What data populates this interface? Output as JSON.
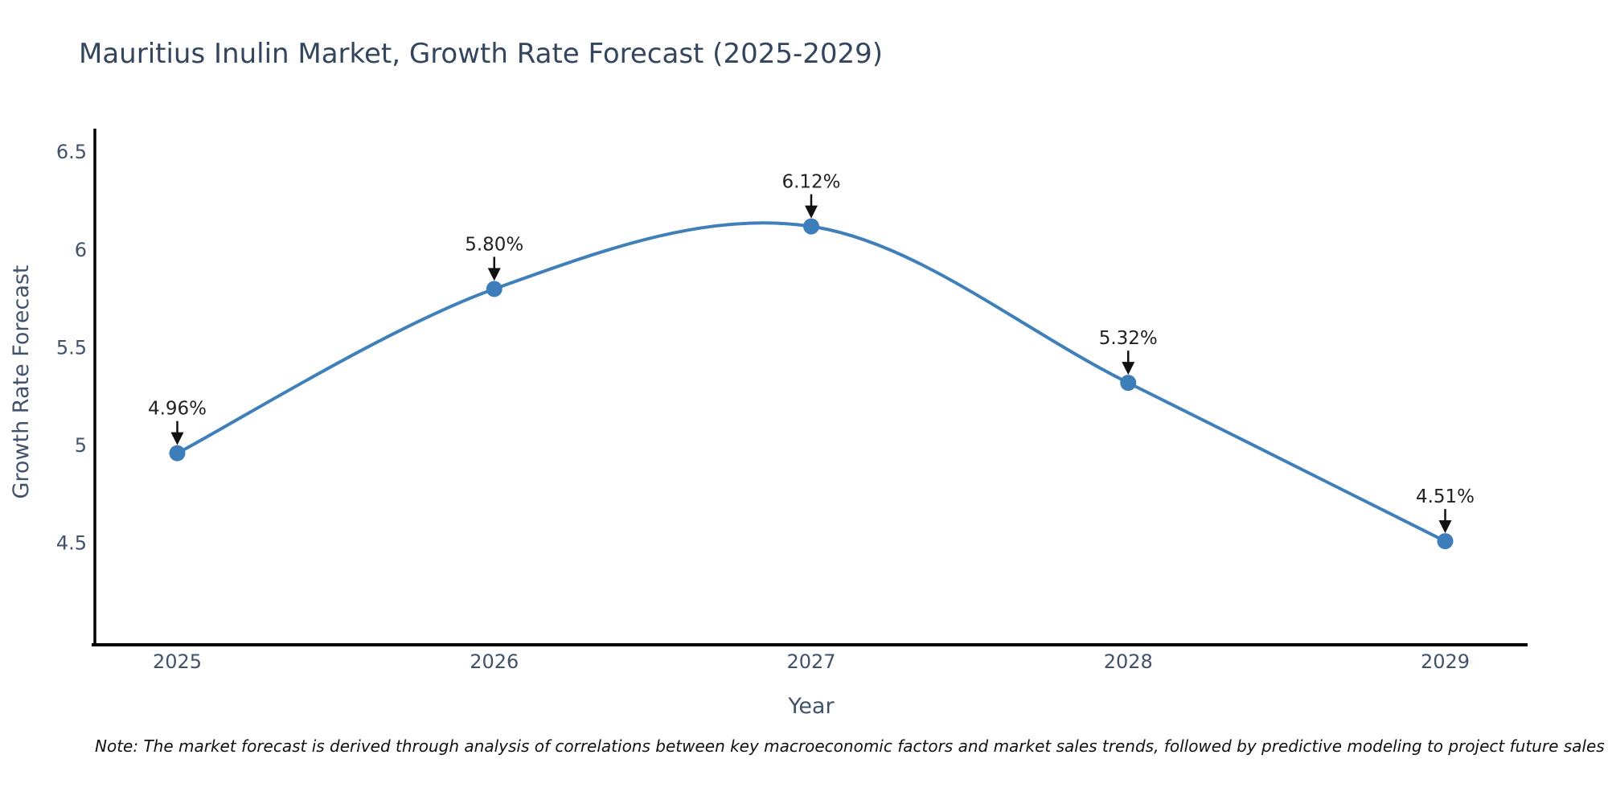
{
  "page": {
    "background": "#ffffff"
  },
  "chart_data": {
    "type": "line",
    "title": "Mauritius Inulin Market, Growth Rate Forecast (2025-2029)",
    "xlabel": "Year",
    "ylabel": "Growth Rate Forecast",
    "x": [
      2025,
      2026,
      2027,
      2028,
      2029
    ],
    "values": [
      4.96,
      5.8,
      6.12,
      5.32,
      4.51
    ],
    "point_labels": [
      "4.96%",
      "5.80%",
      "6.12%",
      "5.32%",
      "4.51%"
    ],
    "xtick_labels": [
      "2025",
      "2026",
      "2027",
      "2028",
      "2029"
    ],
    "yticks": [
      4.5,
      5,
      5.5,
      6,
      6.5
    ],
    "ytick_labels": [
      "4.5",
      "5",
      "5.5",
      "6",
      "6.5"
    ],
    "xlim": [
      2024.74,
      2029.26
    ],
    "ylim": [
      3.98,
      6.62
    ],
    "grid": false,
    "legend": "none",
    "line_shape": "spline",
    "line_color": "#3f80ba",
    "marker_color": "#3d7eba",
    "axis_color": "#000000",
    "title_color": "#33455f",
    "tick_color": "#42526b",
    "annotation_color": "#222222"
  },
  "note": "Note: The market forecast is derived through analysis of correlations between key macroeconomic factors and market sales trends, followed by predictive modeling to project future sales"
}
